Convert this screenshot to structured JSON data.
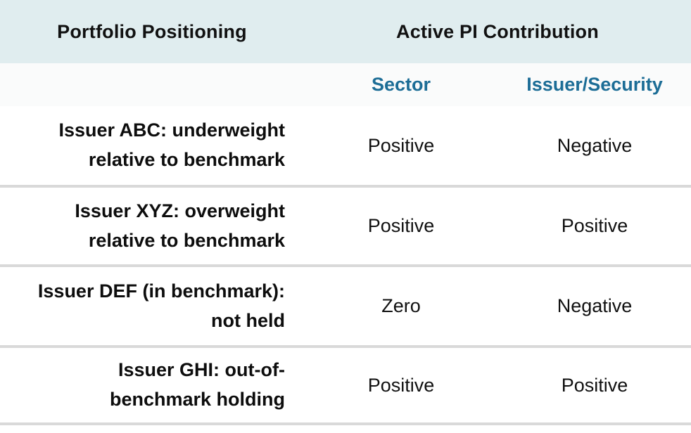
{
  "colors": {
    "header_bg": "#e0edef",
    "subheader_bg": "#fafbfb",
    "accent_teal": "#1c6d96",
    "divider_gray": "#d9d9d9",
    "text_black": "#0d0d0d"
  },
  "chart_data": {
    "type": "table",
    "title": "",
    "columns": [
      "Portfolio Positioning",
      "Active PI Contribution - Sector",
      "Active PI Contribution - Issuer/Security"
    ],
    "rows": [
      [
        "Issuer ABC: underweight relative to benchmark",
        "Positive",
        "Negative"
      ],
      [
        "Issuer XYZ: overweight relative to benchmark",
        "Positive",
        "Positive"
      ],
      [
        "Issuer DEF (in benchmark): not held",
        "Zero",
        "Negative"
      ],
      [
        "Issuer GHI: out-of-benchmark holding",
        "Positive",
        "Positive"
      ]
    ],
    "layout_hints": {
      "header_group_span": "Active PI Contribution spans the Sector and Issuer/Security sub-columns",
      "label_alignment": "right",
      "value_alignment": "center",
      "grid": "horizontal dividers only"
    }
  },
  "table": {
    "header": {
      "positioning": "Portfolio Positioning",
      "contribution": "Active PI Contribution"
    },
    "subheader": {
      "sector": "Sector",
      "issuer_security": "Issuer/Security"
    },
    "rows": [
      {
        "label_line1": "Issuer ABC: underweight",
        "label_line2": "relative to benchmark",
        "sector": "Positive",
        "issuer_security": "Negative"
      },
      {
        "label_line1": "Issuer XYZ: overweight",
        "label_line2": "relative to benchmark",
        "sector": "Positive",
        "issuer_security": "Positive"
      },
      {
        "label_line1": "Issuer DEF (in benchmark):",
        "label_line2": "not held",
        "sector": "Zero",
        "issuer_security": "Negative"
      },
      {
        "label_line1": "Issuer GHI: out-of-",
        "label_line2": "benchmark holding",
        "sector": "Positive",
        "issuer_security": "Positive"
      }
    ]
  }
}
